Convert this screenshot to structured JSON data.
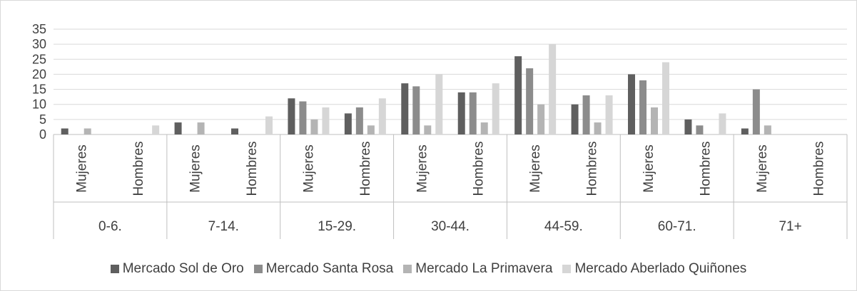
{
  "chart_data": {
    "type": "bar",
    "ylim": [
      0,
      35
    ],
    "yticks": [
      "0",
      "5",
      "10",
      "15",
      "20",
      "25",
      "30",
      "35"
    ],
    "grid": true,
    "legend_position": "bottom",
    "groups": [
      {
        "label": "0-6.",
        "subgroups": [
          "Mujeres",
          "Hombres"
        ]
      },
      {
        "label": "7-14.",
        "subgroups": [
          "Mujeres",
          "Hombres"
        ]
      },
      {
        "label": "15-29.",
        "subgroups": [
          "Mujeres",
          "Hombres"
        ]
      },
      {
        "label": "30-44.",
        "subgroups": [
          "Mujeres",
          "Hombres"
        ]
      },
      {
        "label": "44-59.",
        "subgroups": [
          "Mujeres",
          "Hombres"
        ]
      },
      {
        "label": "60-71.",
        "subgroups": [
          "Mujeres",
          "Hombres"
        ]
      },
      {
        "label": "71+",
        "subgroups": [
          "Mujeres",
          "Hombres"
        ]
      }
    ],
    "series": [
      {
        "name": "Mercado Sol de Oro",
        "color": "#5f5f5f",
        "values": [
          2,
          0,
          4,
          2,
          12,
          7,
          17,
          14,
          26,
          10,
          20,
          5,
          2,
          0
        ]
      },
      {
        "name": "Mercado Santa Rosa",
        "color": "#8c8c8c",
        "values": [
          0,
          0,
          0,
          0,
          11,
          9,
          16,
          14,
          22,
          13,
          18,
          3,
          15,
          0
        ]
      },
      {
        "name": "Mercado La Primavera",
        "color": "#b4b4b4",
        "values": [
          2,
          0,
          4,
          0,
          5,
          3,
          3,
          4,
          10,
          4,
          9,
          0,
          3,
          0
        ]
      },
      {
        "name": "Mercado Aberlado Quiñones",
        "color": "#d6d6d6",
        "values": [
          0,
          3,
          0,
          6,
          9,
          12,
          20,
          17,
          30,
          13,
          24,
          7,
          0,
          0
        ]
      }
    ]
  }
}
